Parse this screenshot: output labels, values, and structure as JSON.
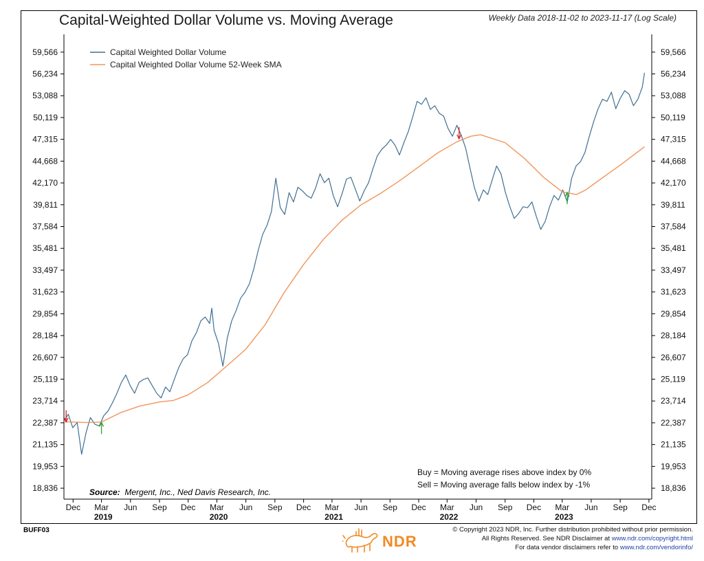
{
  "title": "Capital-Weighted Dollar Volume vs. Moving Average",
  "subtitle": "Weekly Data 2018-11-02 to 2023-11-17 (Log Scale)",
  "legend": [
    {
      "label": "Capital Weighted Dollar Volume",
      "color": "#3f6f92"
    },
    {
      "label": "Capital Weighted Dollar Volume 52-Week SMA",
      "color": "#f0955a"
    }
  ],
  "rules": {
    "buy": "Buy = Moving average rises above index by 0%",
    "sell": "Sell = Moving average falls below index by -1%"
  },
  "source": {
    "label": "Source:",
    "text": "Mergent, Inc., Ned Davis Research, Inc."
  },
  "chart_code": "BUFF03",
  "logo": {
    "text": "NDR"
  },
  "copyright": {
    "line1": "© Copyright 2023 NDR, Inc. Further distribution prohibited without prior permission.",
    "line2_prefix": "All Rights Reserved. See NDR Disclaimer at ",
    "line2_link": "www.ndr.com/copyright.html",
    "line3_prefix": "For data vendor disclaimers refer to ",
    "line3_link": "www.ndr.com/vendorinfo/"
  },
  "chart_data": {
    "type": "line",
    "scale": "log",
    "y_ticks": [
      "59,566",
      "56,234",
      "53,088",
      "50,119",
      "47,315",
      "44,668",
      "42,170",
      "39,811",
      "37,584",
      "35,481",
      "33,497",
      "31,623",
      "29,854",
      "28,184",
      "26,607",
      "25,119",
      "23,714",
      "22,387",
      "21,135",
      "19,953",
      "18,836"
    ],
    "y_tick_values": [
      59566,
      56234,
      53088,
      50119,
      47315,
      44668,
      42170,
      39811,
      37584,
      35481,
      33497,
      31623,
      29854,
      28184,
      26607,
      25119,
      23714,
      22387,
      21135,
      19953,
      18836
    ],
    "ylim": [
      18300,
      61300
    ],
    "x_ticks": [
      "Dec",
      "Mar",
      "Jun",
      "Sep",
      "Dec",
      "Mar",
      "Jun",
      "Sep",
      "Dec",
      "Mar",
      "Jun",
      "Sep",
      "Dec",
      "Mar",
      "Jun",
      "Sep",
      "Dec",
      "Mar",
      "Jun",
      "Sep",
      "Dec"
    ],
    "x_tick_dates": [
      "2018-12-01",
      "2019-03-01",
      "2019-06-01",
      "2019-09-01",
      "2019-12-01",
      "2020-03-01",
      "2020-06-01",
      "2020-09-01",
      "2020-12-01",
      "2021-03-01",
      "2021-06-01",
      "2021-09-01",
      "2021-12-01",
      "2022-03-01",
      "2022-06-01",
      "2022-09-01",
      "2022-12-01",
      "2023-03-01",
      "2023-06-01",
      "2023-09-01",
      "2023-12-01"
    ],
    "year_labels": [
      {
        "label": "2019",
        "date": "2019-04-15"
      },
      {
        "label": "2020",
        "date": "2020-04-15"
      },
      {
        "label": "2021",
        "date": "2021-04-15"
      },
      {
        "label": "2022",
        "date": "2022-04-15"
      },
      {
        "label": "2023",
        "date": "2023-04-15"
      }
    ],
    "xlim": [
      "2018-11-02",
      "2023-12-10"
    ],
    "series": [
      {
        "name": "Capital Weighted Dollar Volume",
        "color": "#3f6f92",
        "points": [
          [
            "2018-11-02",
            22500
          ],
          [
            "2018-11-16",
            22900
          ],
          [
            "2018-11-30",
            22100
          ],
          [
            "2018-12-14",
            22400
          ],
          [
            "2018-12-28",
            20600
          ],
          [
            "2019-01-11",
            21800
          ],
          [
            "2019-01-25",
            22700
          ],
          [
            "2019-02-08",
            22300
          ],
          [
            "2019-02-22",
            22200
          ],
          [
            "2019-03-08",
            22800
          ],
          [
            "2019-03-22",
            23100
          ],
          [
            "2019-04-05",
            23600
          ],
          [
            "2019-04-19",
            24200
          ],
          [
            "2019-05-03",
            24900
          ],
          [
            "2019-05-17",
            25400
          ],
          [
            "2019-05-31",
            24700
          ],
          [
            "2019-06-14",
            24200
          ],
          [
            "2019-06-28",
            24900
          ],
          [
            "2019-07-12",
            25100
          ],
          [
            "2019-07-26",
            25200
          ],
          [
            "2019-08-09",
            24700
          ],
          [
            "2019-08-23",
            24200
          ],
          [
            "2019-09-06",
            23900
          ],
          [
            "2019-09-20",
            24600
          ],
          [
            "2019-10-04",
            24300
          ],
          [
            "2019-10-18",
            25100
          ],
          [
            "2019-11-01",
            25900
          ],
          [
            "2019-11-15",
            26500
          ],
          [
            "2019-11-29",
            26800
          ],
          [
            "2019-12-13",
            27800
          ],
          [
            "2019-12-27",
            28400
          ],
          [
            "2020-01-10",
            29300
          ],
          [
            "2020-01-24",
            29600
          ],
          [
            "2020-02-07",
            29100
          ],
          [
            "2020-02-14",
            30300
          ],
          [
            "2020-02-21",
            28600
          ],
          [
            "2020-03-06",
            27600
          ],
          [
            "2020-03-20",
            26000
          ],
          [
            "2020-04-03",
            28000
          ],
          [
            "2020-04-17",
            29300
          ],
          [
            "2020-05-01",
            30100
          ],
          [
            "2020-05-15",
            31100
          ],
          [
            "2020-05-29",
            31600
          ],
          [
            "2020-06-12",
            32300
          ],
          [
            "2020-06-26",
            33600
          ],
          [
            "2020-07-10",
            35300
          ],
          [
            "2020-07-24",
            36800
          ],
          [
            "2020-08-07",
            37700
          ],
          [
            "2020-08-21",
            39100
          ],
          [
            "2020-09-04",
            42700
          ],
          [
            "2020-09-18",
            39500
          ],
          [
            "2020-10-02",
            38800
          ],
          [
            "2020-10-16",
            41100
          ],
          [
            "2020-10-30",
            40100
          ],
          [
            "2020-11-13",
            41700
          ],
          [
            "2020-11-27",
            41300
          ],
          [
            "2020-12-11",
            40800
          ],
          [
            "2020-12-25",
            40500
          ],
          [
            "2021-01-08",
            41600
          ],
          [
            "2021-01-22",
            43200
          ],
          [
            "2021-02-05",
            42200
          ],
          [
            "2021-02-19",
            42700
          ],
          [
            "2021-03-05",
            40800
          ],
          [
            "2021-03-19",
            39600
          ],
          [
            "2021-04-02",
            41000
          ],
          [
            "2021-04-16",
            42600
          ],
          [
            "2021-04-30",
            42800
          ],
          [
            "2021-05-14",
            41500
          ],
          [
            "2021-05-28",
            40200
          ],
          [
            "2021-06-11",
            41300
          ],
          [
            "2021-06-25",
            42200
          ],
          [
            "2021-07-09",
            43800
          ],
          [
            "2021-07-23",
            45300
          ],
          [
            "2021-08-06",
            46100
          ],
          [
            "2021-08-20",
            46600
          ],
          [
            "2021-09-03",
            47300
          ],
          [
            "2021-09-17",
            46600
          ],
          [
            "2021-10-01",
            45400
          ],
          [
            "2021-10-15",
            46900
          ],
          [
            "2021-10-29",
            48300
          ],
          [
            "2021-11-12",
            50200
          ],
          [
            "2021-11-26",
            52300
          ],
          [
            "2021-12-10",
            51900
          ],
          [
            "2021-12-24",
            52800
          ],
          [
            "2022-01-07",
            51200
          ],
          [
            "2022-01-21",
            51700
          ],
          [
            "2022-02-04",
            50700
          ],
          [
            "2022-02-18",
            50300
          ],
          [
            "2022-03-04",
            48700
          ],
          [
            "2022-03-18",
            47700
          ],
          [
            "2022-04-01",
            49100
          ],
          [
            "2022-04-15",
            47800
          ],
          [
            "2022-04-29",
            46200
          ],
          [
            "2022-05-13",
            43800
          ],
          [
            "2022-05-27",
            41600
          ],
          [
            "2022-06-10",
            40200
          ],
          [
            "2022-06-24",
            41400
          ],
          [
            "2022-07-08",
            40900
          ],
          [
            "2022-07-22",
            42500
          ],
          [
            "2022-08-05",
            44100
          ],
          [
            "2022-08-19",
            43200
          ],
          [
            "2022-09-02",
            41100
          ],
          [
            "2022-09-16",
            39600
          ],
          [
            "2022-09-30",
            38400
          ],
          [
            "2022-10-14",
            38900
          ],
          [
            "2022-10-28",
            39600
          ],
          [
            "2022-11-11",
            39500
          ],
          [
            "2022-11-25",
            40100
          ],
          [
            "2022-12-09",
            38600
          ],
          [
            "2022-12-23",
            37300
          ],
          [
            "2023-01-06",
            38100
          ],
          [
            "2023-01-20",
            39600
          ],
          [
            "2023-02-03",
            40800
          ],
          [
            "2023-02-17",
            40300
          ],
          [
            "2023-03-03",
            41400
          ],
          [
            "2023-03-17",
            40100
          ],
          [
            "2023-03-31",
            42700
          ],
          [
            "2023-04-14",
            44100
          ],
          [
            "2023-04-28",
            44600
          ],
          [
            "2023-05-12",
            45700
          ],
          [
            "2023-05-26",
            47700
          ],
          [
            "2023-06-09",
            49600
          ],
          [
            "2023-06-23",
            51300
          ],
          [
            "2023-07-07",
            52600
          ],
          [
            "2023-07-21",
            52300
          ],
          [
            "2023-08-04",
            53600
          ],
          [
            "2023-08-18",
            51300
          ],
          [
            "2023-09-01",
            52700
          ],
          [
            "2023-09-15",
            53800
          ],
          [
            "2023-09-29",
            53300
          ],
          [
            "2023-10-13",
            51700
          ],
          [
            "2023-10-27",
            52600
          ],
          [
            "2023-11-10",
            54300
          ],
          [
            "2023-11-17",
            56400
          ]
        ]
      },
      {
        "name": "Capital Weighted Dollar Volume 52-Week SMA",
        "color": "#f0955a",
        "points": [
          [
            "2018-11-02",
            22450
          ],
          [
            "2019-01-15",
            22400
          ],
          [
            "2019-03-01",
            22430
          ],
          [
            "2019-05-01",
            23000
          ],
          [
            "2019-07-01",
            23400
          ],
          [
            "2019-09-01",
            23650
          ],
          [
            "2019-10-15",
            23750
          ],
          [
            "2019-12-01",
            24100
          ],
          [
            "2020-02-01",
            24900
          ],
          [
            "2020-04-01",
            26000
          ],
          [
            "2020-06-01",
            27200
          ],
          [
            "2020-08-01",
            29000
          ],
          [
            "2020-10-01",
            31600
          ],
          [
            "2020-12-01",
            34000
          ],
          [
            "2021-02-01",
            36300
          ],
          [
            "2021-04-01",
            38200
          ],
          [
            "2021-06-01",
            39800
          ],
          [
            "2021-08-01",
            41000
          ],
          [
            "2021-10-01",
            42400
          ],
          [
            "2021-12-01",
            44000
          ],
          [
            "2022-02-01",
            45700
          ],
          [
            "2022-04-01",
            47000
          ],
          [
            "2022-05-15",
            47700
          ],
          [
            "2022-06-15",
            47900
          ],
          [
            "2022-09-01",
            46900
          ],
          [
            "2022-11-01",
            45000
          ],
          [
            "2023-01-01",
            42800
          ],
          [
            "2023-03-01",
            41200
          ],
          [
            "2023-04-15",
            40900
          ],
          [
            "2023-05-15",
            41400
          ],
          [
            "2023-07-01",
            42600
          ],
          [
            "2023-09-01",
            44200
          ],
          [
            "2023-11-17",
            46400
          ]
        ]
      }
    ],
    "signals": [
      {
        "type": "sell",
        "date": "2018-11-09",
        "value": 22400,
        "color": "#d62020"
      },
      {
        "type": "buy",
        "date": "2019-03-01",
        "value": 22450,
        "color": "#2aa52a"
      },
      {
        "type": "sell",
        "date": "2022-04-08",
        "value": 47300,
        "color": "#d62020"
      },
      {
        "type": "buy",
        "date": "2023-03-17",
        "value": 41200,
        "color": "#2aa52a"
      }
    ],
    "grid": false,
    "legend_position": "top-left"
  }
}
